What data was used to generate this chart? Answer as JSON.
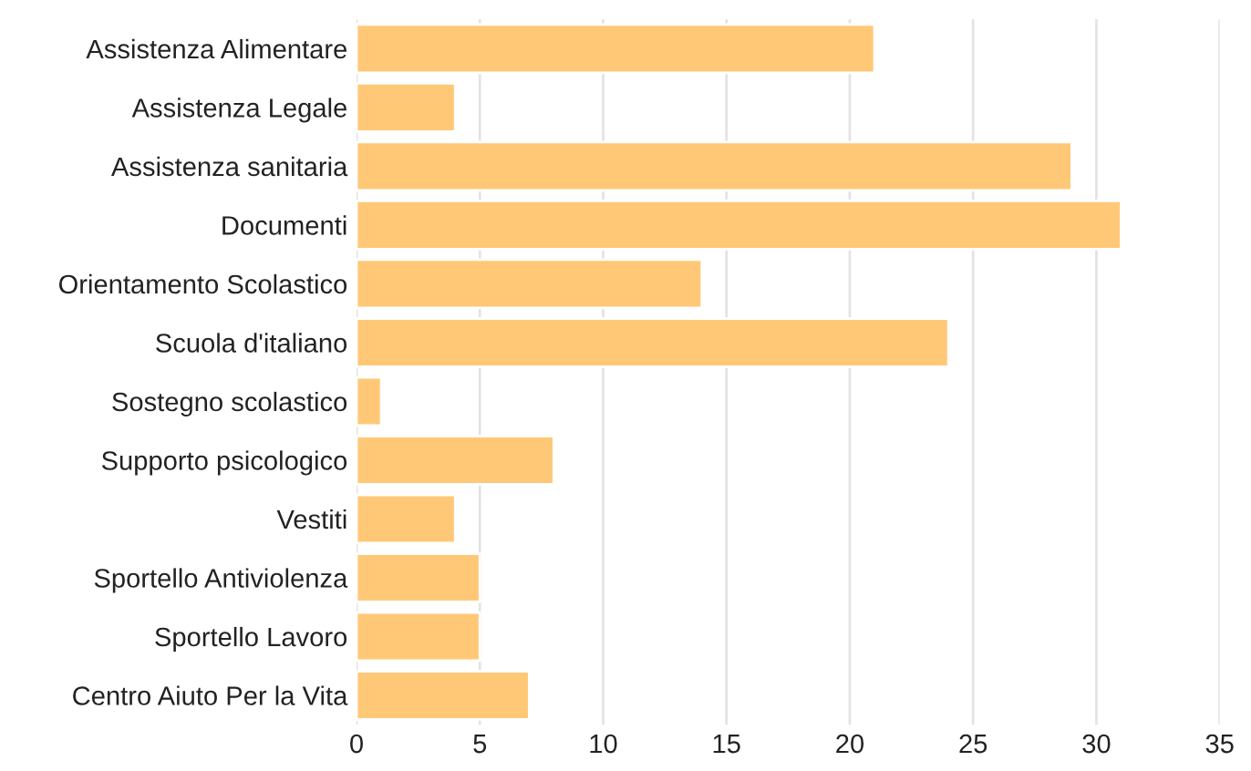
{
  "chart_data": {
    "type": "bar",
    "orientation": "horizontal",
    "categories": [
      "Assistenza Alimentare",
      "Assistenza Legale",
      "Assistenza sanitaria",
      "Documenti",
      "Orientamento Scolastico",
      "Scuola d'italiano",
      "Sostegno scolastico",
      "Supporto psicologico",
      "Vestiti",
      "Sportello Antiviolenza",
      "Sportello Lavoro",
      "Centro Aiuto Per la Vita"
    ],
    "values": [
      21,
      4,
      29,
      31,
      14,
      24,
      1,
      8,
      4,
      5,
      5,
      7
    ],
    "color": "#ffc877",
    "xlim": [
      0,
      35
    ],
    "xticks": [
      0,
      5,
      10,
      15,
      20,
      25,
      30,
      35
    ],
    "grid": "x"
  }
}
